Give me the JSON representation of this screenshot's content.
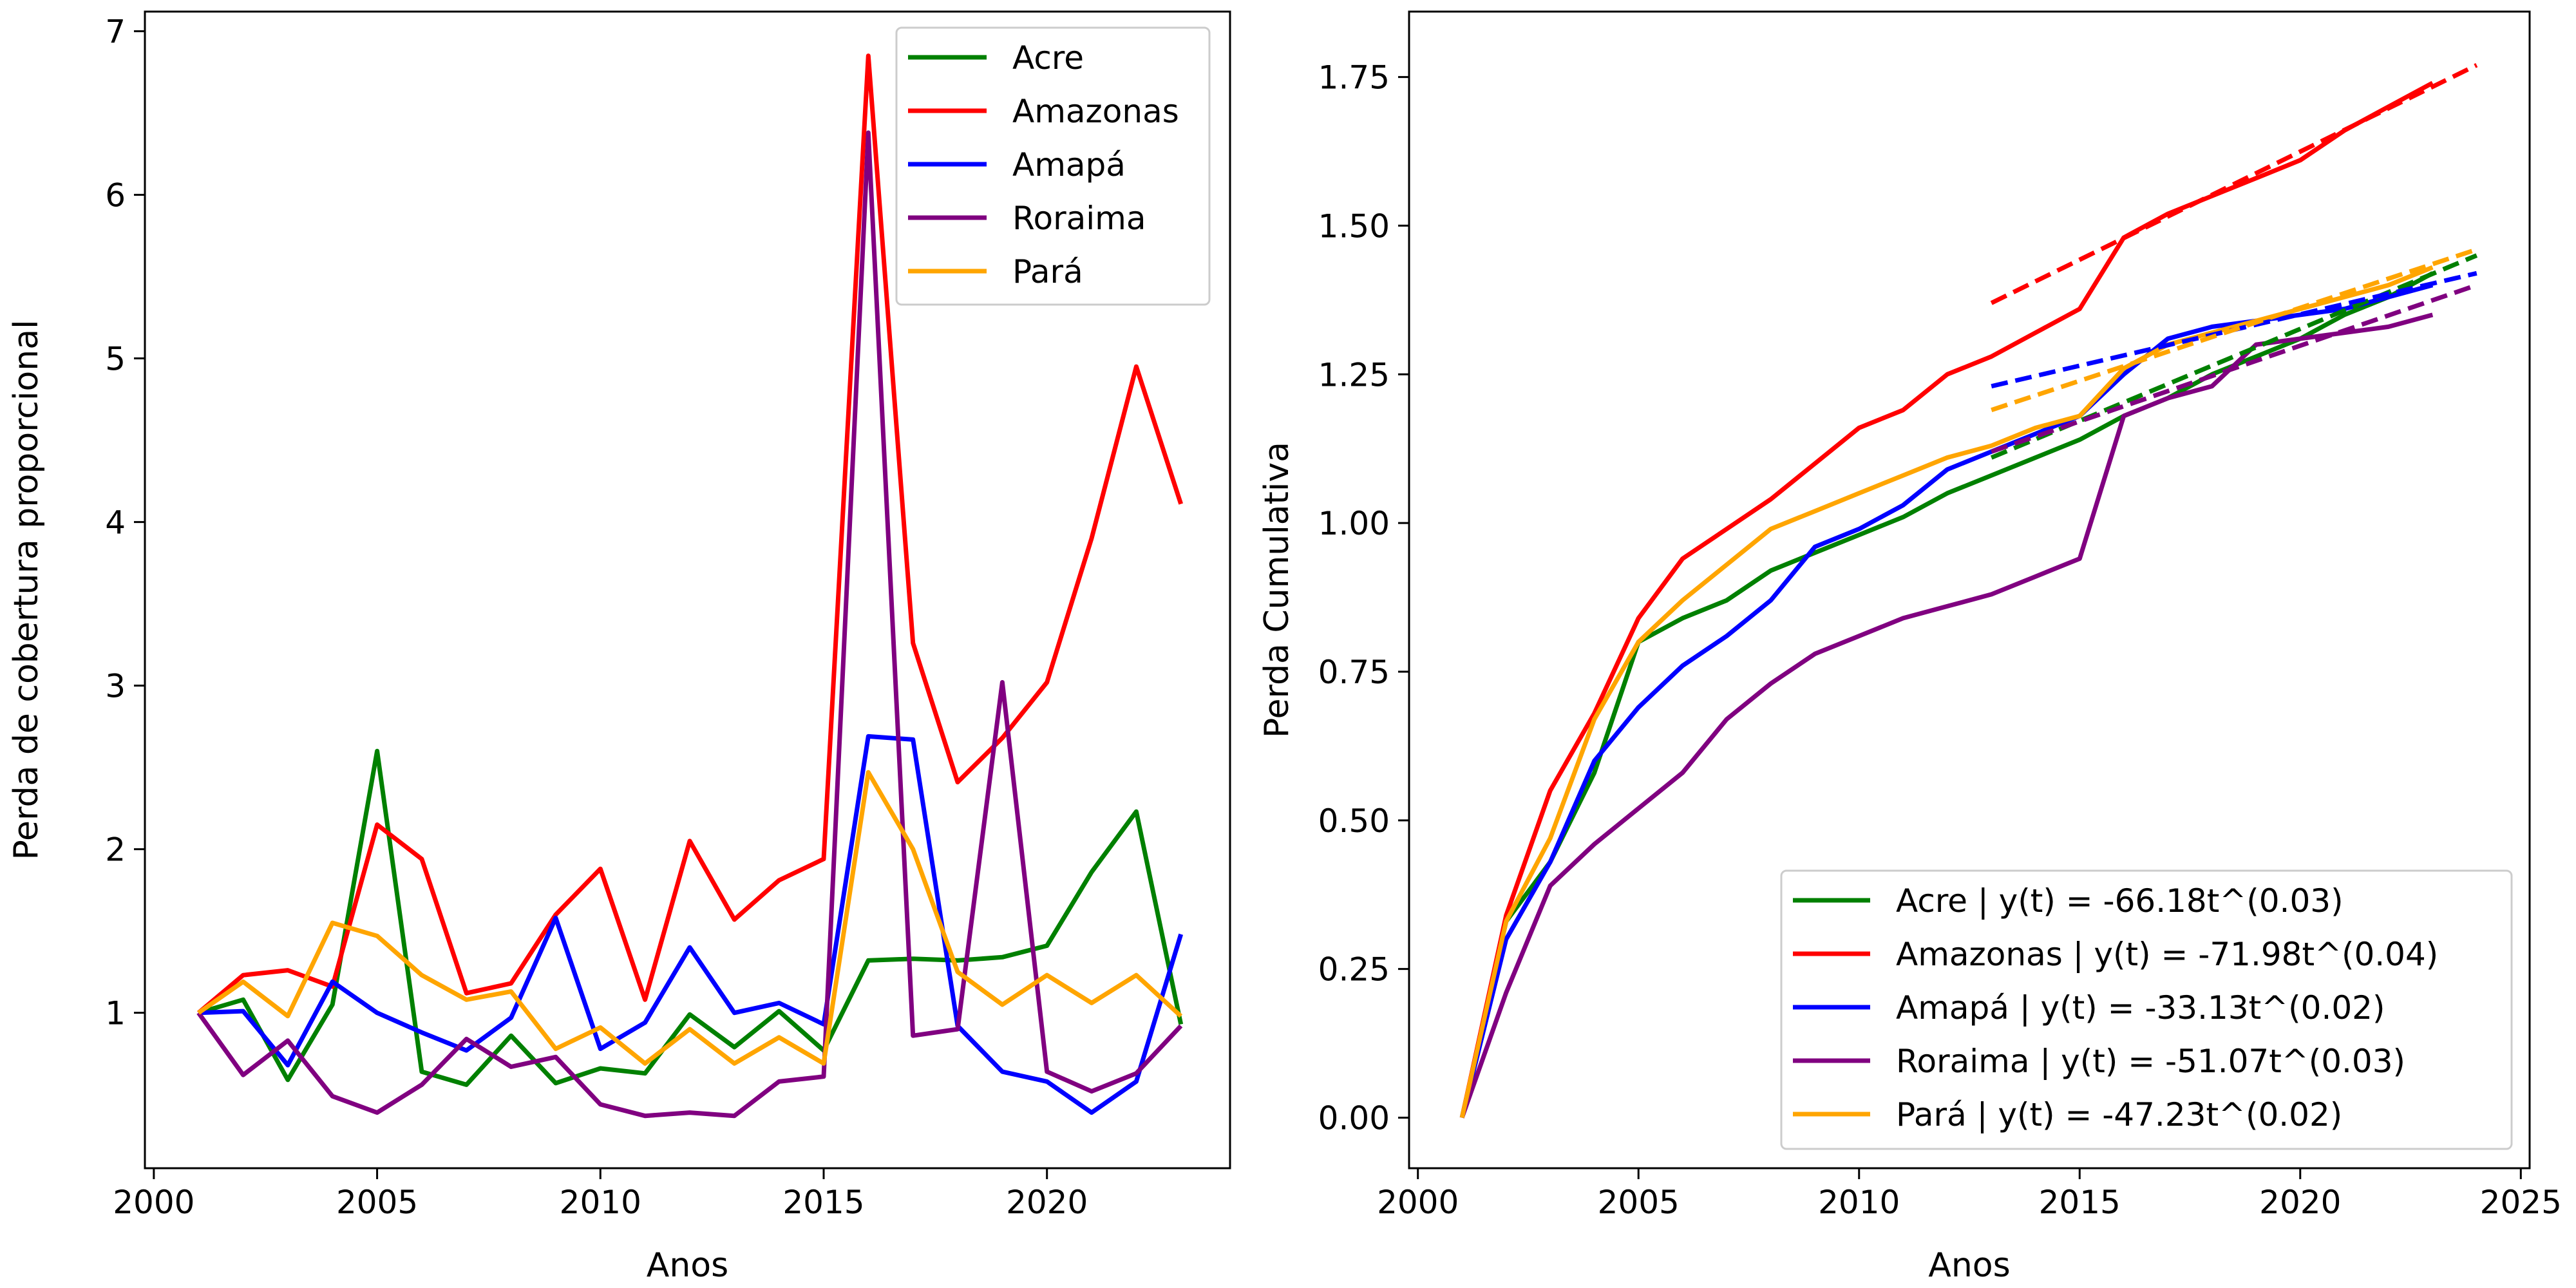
{
  "chart_data": [
    {
      "type": "line",
      "xlabel": "Anos",
      "ylabel": "Perda de cobertura proporcional",
      "xlim": [
        1999.8,
        2024.1
      ],
      "ylim": [
        0.05,
        7.12
      ],
      "xticks": [
        2000,
        2005,
        2010,
        2015,
        2020
      ],
      "yticks": [
        1,
        2,
        3,
        4,
        5,
        6,
        7
      ],
      "grid": false,
      "legend_position": "top-right",
      "x": [
        2001,
        2002,
        2003,
        2004,
        2005,
        2006,
        2007,
        2008,
        2009,
        2010,
        2011,
        2012,
        2013,
        2014,
        2015,
        2016,
        2017,
        2018,
        2019,
        2020,
        2021,
        2022,
        2023
      ],
      "series": [
        {
          "name": "Acre",
          "color": "#008000",
          "values": [
            1.0,
            1.08,
            0.59,
            1.05,
            2.6,
            0.64,
            0.56,
            0.86,
            0.57,
            0.66,
            0.63,
            0.99,
            0.79,
            1.01,
            0.77,
            1.32,
            1.33,
            1.32,
            1.34,
            1.41,
            1.86,
            2.23,
            0.93
          ]
        },
        {
          "name": "Amazonas",
          "color": "#ff0000",
          "values": [
            1.0,
            1.23,
            1.26,
            1.16,
            2.15,
            1.94,
            1.12,
            1.18,
            1.6,
            1.88,
            1.08,
            2.05,
            1.57,
            1.81,
            1.94,
            6.85,
            3.26,
            2.41,
            2.68,
            3.02,
            3.9,
            4.95,
            4.11
          ]
        },
        {
          "name": "Amapá",
          "color": "#0000ff",
          "values": [
            1.0,
            1.01,
            0.68,
            1.19,
            1.0,
            0.88,
            0.77,
            0.97,
            1.58,
            0.78,
            0.94,
            1.4,
            1.0,
            1.06,
            0.93,
            2.69,
            2.67,
            0.92,
            0.64,
            0.58,
            0.39,
            0.58,
            1.48
          ]
        },
        {
          "name": "Roraima",
          "color": "#800080",
          "values": [
            1.0,
            0.62,
            0.83,
            0.49,
            0.39,
            0.56,
            0.84,
            0.67,
            0.73,
            0.44,
            0.37,
            0.39,
            0.37,
            0.58,
            0.61,
            6.38,
            0.86,
            0.9,
            3.02,
            0.64,
            0.52,
            0.63,
            0.92
          ]
        },
        {
          "name": "Pará",
          "color": "#ffa500",
          "values": [
            1.0,
            1.19,
            0.98,
            1.55,
            1.47,
            1.23,
            1.08,
            1.13,
            0.78,
            0.91,
            0.69,
            0.9,
            0.69,
            0.85,
            0.69,
            2.47,
            2.0,
            1.25,
            1.05,
            1.23,
            1.06,
            1.23,
            0.98
          ]
        }
      ]
    },
    {
      "type": "line",
      "xlabel": "Anos",
      "ylabel": "Perda Cumulativa",
      "xlim": [
        1999.8,
        2025.2
      ],
      "ylim": [
        -0.085,
        1.86
      ],
      "xticks": [
        2000,
        2005,
        2010,
        2015,
        2020,
        2025
      ],
      "yticks": [
        0.0,
        0.25,
        0.5,
        0.75,
        1.0,
        1.25,
        1.5,
        1.75
      ],
      "ytick_labels": [
        "0.00",
        "0.25",
        "0.50",
        "0.75",
        "1.00",
        "1.25",
        "1.50",
        "1.75"
      ],
      "grid": false,
      "legend_position": "bottom-right",
      "x": [
        2001,
        2002,
        2003,
        2004,
        2005,
        2006,
        2007,
        2008,
        2009,
        2010,
        2011,
        2012,
        2013,
        2014,
        2015,
        2016,
        2017,
        2018,
        2019,
        2020,
        2021,
        2022,
        2023
      ],
      "series": [
        {
          "name": "Acre | y(t) = -66.18t^(0.03)",
          "color": "#008000",
          "values": [
            0.0,
            0.33,
            0.43,
            0.58,
            0.8,
            0.84,
            0.87,
            0.92,
            0.95,
            0.98,
            1.01,
            1.05,
            1.08,
            1.11,
            1.14,
            1.18,
            1.21,
            1.25,
            1.28,
            1.31,
            1.35,
            1.38,
            1.42
          ]
        },
        {
          "name": "Amazonas | y(t) = -71.98t^(0.04)",
          "color": "#ff0000",
          "values": [
            0.0,
            0.34,
            0.55,
            0.68,
            0.84,
            0.94,
            0.99,
            1.04,
            1.1,
            1.16,
            1.19,
            1.25,
            1.28,
            1.32,
            1.36,
            1.48,
            1.52,
            1.55,
            1.58,
            1.61,
            1.66,
            1.7,
            1.74
          ]
        },
        {
          "name": "Amapá | y(t) = -33.13t^(0.02)",
          "color": "#0000ff",
          "values": [
            0.0,
            0.3,
            0.43,
            0.6,
            0.69,
            0.76,
            0.81,
            0.87,
            0.96,
            0.99,
            1.03,
            1.09,
            1.12,
            1.15,
            1.18,
            1.25,
            1.31,
            1.33,
            1.34,
            1.35,
            1.36,
            1.38,
            1.4
          ]
        },
        {
          "name": "Roraima | y(t) = -51.07t^(0.03)",
          "color": "#800080",
          "values": [
            0.0,
            0.21,
            0.39,
            0.46,
            0.52,
            0.58,
            0.67,
            0.73,
            0.78,
            0.81,
            0.84,
            0.86,
            0.88,
            0.91,
            0.94,
            1.18,
            1.21,
            1.23,
            1.3,
            1.31,
            1.32,
            1.33,
            1.35
          ]
        },
        {
          "name": "Pará | y(t) = -47.23t^(0.02)",
          "color": "#ffa500",
          "values": [
            0.0,
            0.33,
            0.47,
            0.67,
            0.8,
            0.87,
            0.93,
            0.99,
            1.02,
            1.05,
            1.08,
            1.11,
            1.13,
            1.16,
            1.18,
            1.26,
            1.3,
            1.32,
            1.34,
            1.36,
            1.38,
            1.4,
            1.43
          ]
        }
      ],
      "fit_lines": [
        {
          "color": "#008000",
          "x": [
            2013,
            2024
          ],
          "y": [
            1.11,
            1.45
          ]
        },
        {
          "color": "#ff0000",
          "x": [
            2013,
            2024
          ],
          "y": [
            1.37,
            1.77
          ]
        },
        {
          "color": "#0000ff",
          "x": [
            2013,
            2024
          ],
          "y": [
            1.23,
            1.42
          ]
        },
        {
          "color": "#800080",
          "x": [
            2013,
            2024
          ],
          "y": [
            1.12,
            1.4
          ]
        },
        {
          "color": "#ffa500",
          "x": [
            2013,
            2024
          ],
          "y": [
            1.19,
            1.46
          ]
        }
      ]
    }
  ]
}
